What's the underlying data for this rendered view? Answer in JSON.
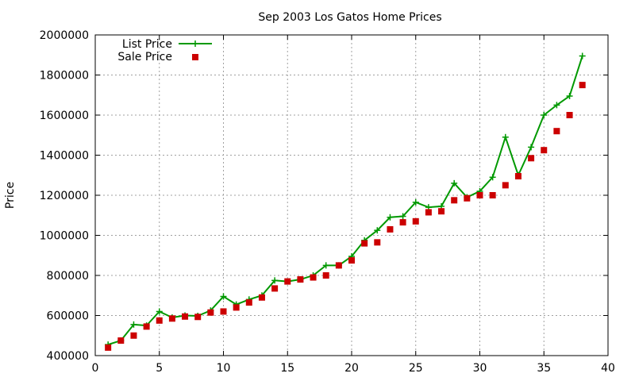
{
  "chart_data": {
    "type": "line",
    "title": "Sep 2003 Los Gatos Home Prices",
    "xlabel": "",
    "ylabel": "Price",
    "xlim": [
      0,
      40
    ],
    "ylim": [
      400000,
      2000000
    ],
    "xticks": [
      0,
      5,
      10,
      15,
      20,
      25,
      30,
      35,
      40
    ],
    "yticks": [
      400000,
      600000,
      800000,
      1000000,
      1200000,
      1400000,
      1600000,
      1800000,
      2000000
    ],
    "grid": true,
    "legend_position": "top-left",
    "series": [
      {
        "name": "List Price",
        "style": "line-with-plus-markers",
        "color": "#009900",
        "x": [
          1,
          2,
          3,
          4,
          5,
          6,
          7,
          8,
          9,
          10,
          11,
          12,
          13,
          14,
          15,
          16,
          17,
          18,
          19,
          20,
          21,
          22,
          23,
          24,
          25,
          26,
          27,
          28,
          29,
          30,
          31,
          32,
          33,
          34,
          35,
          36,
          37,
          38
        ],
        "y": [
          455000,
          475000,
          555000,
          550000,
          620000,
          590000,
          600000,
          598000,
          625000,
          695000,
          655000,
          680000,
          700000,
          775000,
          770000,
          780000,
          800000,
          850000,
          850000,
          895000,
          975000,
          1025000,
          1090000,
          1095000,
          1165000,
          1140000,
          1145000,
          1260000,
          1190000,
          1220000,
          1290000,
          1490000,
          1300000,
          1440000,
          1600000,
          1650000,
          1695000,
          1895000
        ]
      },
      {
        "name": "Sale Price",
        "style": "square-markers",
        "color": "#cc0000",
        "x": [
          1,
          2,
          3,
          4,
          5,
          6,
          7,
          8,
          9,
          10,
          11,
          12,
          13,
          14,
          15,
          16,
          17,
          18,
          19,
          20,
          21,
          22,
          23,
          24,
          25,
          26,
          27,
          28,
          29,
          30,
          31,
          32,
          33,
          34,
          35,
          36,
          37,
          38
        ],
        "y": [
          440000,
          475000,
          500000,
          545000,
          575000,
          585000,
          595000,
          593000,
          615000,
          620000,
          640000,
          665000,
          690000,
          735000,
          770000,
          780000,
          790000,
          800000,
          850000,
          875000,
          960000,
          965000,
          1030000,
          1065000,
          1070000,
          1115000,
          1120000,
          1175000,
          1185000,
          1200000,
          1200000,
          1250000,
          1295000,
          1385000,
          1425000,
          1520000,
          1600000,
          1750000
        ]
      }
    ]
  }
}
